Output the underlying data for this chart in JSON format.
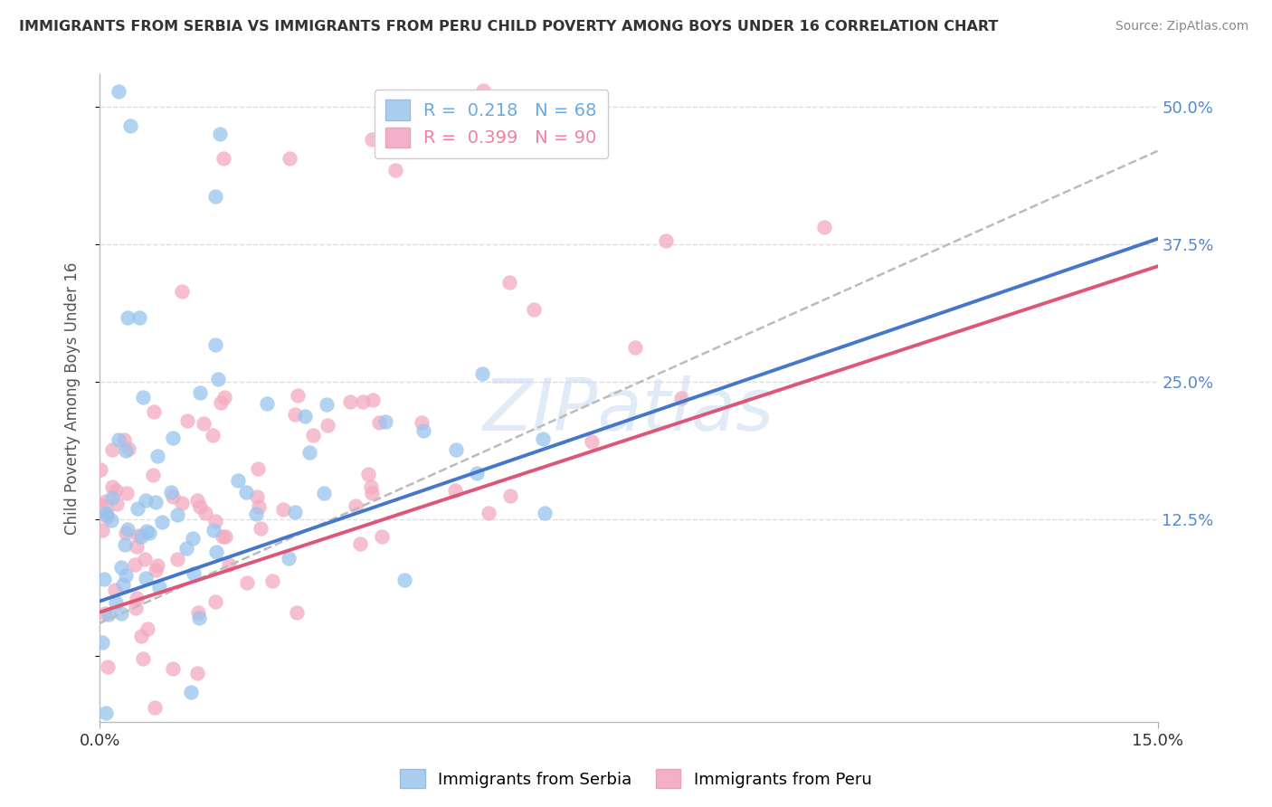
{
  "title": "IMMIGRANTS FROM SERBIA VS IMMIGRANTS FROM PERU CHILD POVERTY AMONG BOYS UNDER 16 CORRELATION CHART",
  "source": "Source: ZipAtlas.com",
  "ylabel": "Child Poverty Among Boys Under 16",
  "ytick_vals": [
    0.0,
    0.125,
    0.25,
    0.375,
    0.5
  ],
  "ytick_labels": [
    "",
    "12.5%",
    "25.0%",
    "37.5%",
    "50.0%"
  ],
  "xlim": [
    0.0,
    0.15
  ],
  "ylim": [
    -0.06,
    0.53
  ],
  "legend_entries": [
    {
      "label": "R =  0.218   N = 68",
      "color": "#6aaae0"
    },
    {
      "label": "R =  0.399   N = 90",
      "color": "#f080a0"
    }
  ],
  "series1_color": "#99c4ed",
  "series2_color": "#f4aac0",
  "trendline_blue_color": "#4477cc",
  "trendline_pink_color": "#dd5577",
  "trendline_dash_color": "#bbbbbb",
  "watermark_text": "ZIPatlas",
  "watermark_color": "#c5d8f0",
  "background_color": "#ffffff",
  "grid_color": "#dddddd",
  "R1": 0.218,
  "N1": 68,
  "R2": 0.399,
  "N2": 90,
  "legend1_box_color": "#aaccee",
  "legend2_box_color": "#f4b0c8",
  "bottom_legend_labels": [
    "Immigrants from Serbia",
    "Immigrants from Peru"
  ]
}
